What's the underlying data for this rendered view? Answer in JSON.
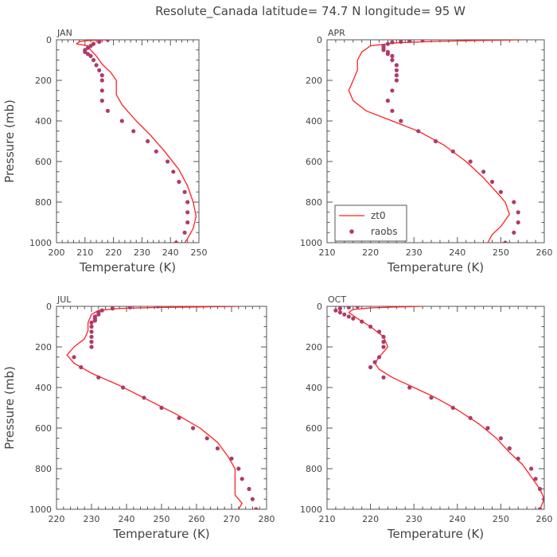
{
  "title": "Resolute_Canada   latitude= 74.7 N longitude= 95 W",
  "colors": {
    "model_line": "#ff2020",
    "obs_point": "#b03a6a",
    "axis": "#555555"
  },
  "legend": {
    "model": "zt0",
    "obs": "raobs"
  },
  "chart_data": [
    {
      "type": "line",
      "panel": "JAN",
      "xlabel": "Temperature (K)",
      "ylabel": "Pressure (mb)",
      "xlim": [
        200,
        250
      ],
      "ylim": [
        1000,
        0
      ],
      "xticks": [
        200,
        210,
        220,
        230,
        240,
        250
      ],
      "yticks": [
        0,
        200,
        400,
        600,
        800,
        1000
      ],
      "series": [
        {
          "kind": "line",
          "points": [
            [
              218,
              0
            ],
            [
              214,
              2
            ],
            [
              211,
              4
            ],
            [
              208,
              10
            ],
            [
              207,
              20
            ],
            [
              211,
              30
            ],
            [
              212,
              50
            ],
            [
              214,
              80
            ],
            [
              216,
              120
            ],
            [
              219,
              160
            ],
            [
              221,
              200
            ],
            [
              221,
              230
            ],
            [
              221,
              270
            ],
            [
              223,
              320
            ],
            [
              228,
              400
            ],
            [
              233,
              470
            ],
            [
              238,
              550
            ],
            [
              243,
              640
            ],
            [
              246,
              720
            ],
            [
              248,
              800
            ],
            [
              249,
              870
            ],
            [
              248,
              930
            ],
            [
              246,
              980
            ],
            [
              245,
              1000
            ]
          ]
        },
        {
          "kind": "scatter",
          "points": [
            [
              218,
              0
            ],
            [
              215,
              10
            ],
            [
              213,
              20
            ],
            [
              212,
              30
            ],
            [
              211,
              40
            ],
            [
              210,
              50
            ],
            [
              210,
              60
            ],
            [
              211,
              70
            ],
            [
              212,
              80
            ],
            [
              213,
              100
            ],
            [
              214,
              125
            ],
            [
              215,
              150
            ],
            [
              216,
              175
            ],
            [
              216,
              200
            ],
            [
              216,
              250
            ],
            [
              216,
              300
            ],
            [
              218,
              350
            ],
            [
              223,
              400
            ],
            [
              227,
              450
            ],
            [
              232,
              500
            ],
            [
              235,
              550
            ],
            [
              239,
              600
            ],
            [
              241,
              650
            ],
            [
              243,
              700
            ],
            [
              245,
              750
            ],
            [
              246,
              800
            ],
            [
              246,
              850
            ],
            [
              246,
              900
            ],
            [
              245,
              950
            ],
            [
              242,
              1000
            ]
          ]
        }
      ]
    },
    {
      "type": "line",
      "panel": "APR",
      "xlabel": "Temperature (K)",
      "ylabel": "",
      "xlim": [
        210,
        260
      ],
      "ylim": [
        1000,
        0
      ],
      "xticks": [
        210,
        220,
        230,
        240,
        250,
        260
      ],
      "yticks": [
        0,
        200,
        400,
        600,
        800,
        1000
      ],
      "legend_position": "bottom-left",
      "series": [
        {
          "kind": "line",
          "points": [
            [
              255,
              0
            ],
            [
              245,
              3
            ],
            [
              235,
              8
            ],
            [
              226,
              15
            ],
            [
              220,
              30
            ],
            [
              218,
              60
            ],
            [
              217,
              100
            ],
            [
              217,
              150
            ],
            [
              216,
              200
            ],
            [
              215,
              250
            ],
            [
              216,
              300
            ],
            [
              219,
              350
            ],
            [
              225,
              400
            ],
            [
              231,
              450
            ],
            [
              237,
              520
            ],
            [
              242,
              600
            ],
            [
              246,
              680
            ],
            [
              249,
              750
            ],
            [
              251,
              800
            ],
            [
              252,
              860
            ],
            [
              250,
              920
            ],
            [
              248,
              960
            ],
            [
              247,
              1000
            ]
          ]
        },
        {
          "kind": "scatter",
          "points": [
            [
              232,
              0
            ],
            [
              229,
              5
            ],
            [
              227,
              10
            ],
            [
              225,
              12
            ],
            [
              224,
              20
            ],
            [
              223,
              30
            ],
            [
              223,
              40
            ],
            [
              223,
              50
            ],
            [
              224,
              60
            ],
            [
              224,
              70
            ],
            [
              225,
              80
            ],
            [
              225,
              100
            ],
            [
              226,
              125
            ],
            [
              226,
              150
            ],
            [
              226,
              175
            ],
            [
              226,
              200
            ],
            [
              225,
              250
            ],
            [
              224,
              300
            ],
            [
              225,
              350
            ],
            [
              227,
              400
            ],
            [
              231,
              450
            ],
            [
              235,
              500
            ],
            [
              239,
              550
            ],
            [
              243,
              600
            ],
            [
              246,
              650
            ],
            [
              248,
              700
            ],
            [
              250,
              750
            ],
            [
              253,
              800
            ],
            [
              254,
              850
            ],
            [
              254,
              900
            ],
            [
              253,
              950
            ],
            [
              251,
              1000
            ]
          ]
        }
      ]
    },
    {
      "type": "line",
      "panel": "JUL",
      "xlabel": "Temperature (K)",
      "ylabel": "Pressure (mb)",
      "xlim": [
        220,
        280
      ],
      "ylim": [
        1000,
        0
      ],
      "xticks": [
        220,
        230,
        240,
        250,
        260,
        270,
        280
      ],
      "yticks": [
        0,
        200,
        400,
        600,
        800,
        1000
      ],
      "series": [
        {
          "kind": "line",
          "points": [
            [
              272,
              0
            ],
            [
              260,
              3
            ],
            [
              248,
              6
            ],
            [
              238,
              10
            ],
            [
              232,
              20
            ],
            [
              230,
              40
            ],
            [
              229,
              80
            ],
            [
              229,
              120
            ],
            [
              228,
              160
            ],
            [
              225,
              200
            ],
            [
              223,
              240
            ],
            [
              225,
              280
            ],
            [
              230,
              330
            ],
            [
              238,
              390
            ],
            [
              246,
              460
            ],
            [
              254,
              530
            ],
            [
              261,
              600
            ],
            [
              266,
              670
            ],
            [
              269,
              740
            ],
            [
              271,
              800
            ],
            [
              271,
              860
            ],
            [
              271,
              930
            ],
            [
              273,
              970
            ],
            [
              272,
              1000
            ]
          ]
        },
        {
          "kind": "scatter",
          "points": [
            [
              249,
              0
            ],
            [
              241,
              5
            ],
            [
              236,
              10
            ],
            [
              233,
              20
            ],
            [
              232,
              30
            ],
            [
              232,
              40
            ],
            [
              231,
              50
            ],
            [
              231,
              60
            ],
            [
              231,
              70
            ],
            [
              230,
              80
            ],
            [
              230,
              100
            ],
            [
              230,
              125
            ],
            [
              230,
              150
            ],
            [
              230,
              175
            ],
            [
              230,
              200
            ],
            [
              225,
              250
            ],
            [
              227,
              300
            ],
            [
              232,
              350
            ],
            [
              239,
              400
            ],
            [
              245,
              450
            ],
            [
              250,
              500
            ],
            [
              255,
              550
            ],
            [
              259,
              600
            ],
            [
              263,
              650
            ],
            [
              266,
              700
            ],
            [
              270,
              750
            ],
            [
              272,
              800
            ],
            [
              273,
              850
            ],
            [
              275,
              900
            ],
            [
              276,
              950
            ],
            [
              277,
              1000
            ]
          ]
        }
      ]
    },
    {
      "type": "line",
      "panel": "OCT",
      "xlabel": "Temperature (K)",
      "ylabel": "",
      "xlim": [
        210,
        260
      ],
      "ylim": [
        1000,
        0
      ],
      "xticks": [
        210,
        220,
        230,
        240,
        250,
        260
      ],
      "yticks": [
        0,
        200,
        400,
        600,
        800,
        1000
      ],
      "series": [
        {
          "kind": "line",
          "points": [
            [
              232,
              0
            ],
            [
              225,
              4
            ],
            [
              220,
              8
            ],
            [
              216,
              15
            ],
            [
              215,
              30
            ],
            [
              217,
              60
            ],
            [
              220,
              100
            ],
            [
              223,
              150
            ],
            [
              224,
              200
            ],
            [
              222,
              250
            ],
            [
              221,
              280
            ],
            [
              222,
              310
            ],
            [
              225,
              350
            ],
            [
              230,
              400
            ],
            [
              235,
              450
            ],
            [
              240,
              510
            ],
            [
              245,
              580
            ],
            [
              249,
              650
            ],
            [
              252,
              720
            ],
            [
              255,
              780
            ],
            [
              257,
              840
            ],
            [
              259,
              900
            ],
            [
              260,
              950
            ],
            [
              259,
              1000
            ]
          ]
        },
        {
          "kind": "scatter",
          "points": [
            [
              217,
              0
            ],
            [
              215,
              5
            ],
            [
              213,
              10
            ],
            [
              212,
              20
            ],
            [
              213,
              30
            ],
            [
              214,
              40
            ],
            [
              215,
              50
            ],
            [
              216,
              60
            ],
            [
              218,
              75
            ],
            [
              220,
              100
            ],
            [
              222,
              125
            ],
            [
              223,
              150
            ],
            [
              223,
              175
            ],
            [
              223,
              200
            ],
            [
              222,
              250
            ],
            [
              221,
              275
            ],
            [
              220,
              300
            ],
            [
              223,
              350
            ],
            [
              229,
              400
            ],
            [
              234,
              450
            ],
            [
              239,
              500
            ],
            [
              243,
              550
            ],
            [
              247,
              600
            ],
            [
              250,
              650
            ],
            [
              252,
              700
            ],
            [
              254,
              750
            ],
            [
              257,
              800
            ],
            [
              258,
              850
            ],
            [
              259,
              900
            ],
            [
              260,
              950
            ],
            [
              259,
              1000
            ]
          ]
        }
      ]
    }
  ]
}
